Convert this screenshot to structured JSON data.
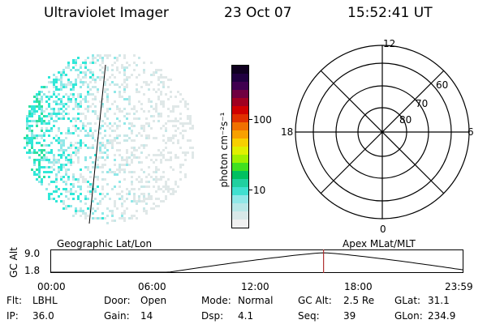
{
  "header": {
    "instrument": "Ultraviolet Imager",
    "date": "23 Oct 07",
    "time": "15:52:41 UT"
  },
  "colorbar": {
    "unit_label": "photon cm⁻²s⁻¹",
    "ticks": [
      "100",
      "10"
    ],
    "colors": [
      "#f0f0f0",
      "#d8e8e8",
      "#b8e8e8",
      "#90e8e8",
      "#40e0d0",
      "#20d0a0",
      "#00c060",
      "#40e020",
      "#a0f000",
      "#e0f000",
      "#f8d000",
      "#f8a000",
      "#f07000",
      "#e03000",
      "#d00000",
      "#a00020",
      "#700040",
      "#400050",
      "#200040",
      "#100020"
    ]
  },
  "polar": {
    "mlt_labels": {
      "top": "12",
      "left": "18",
      "right": "6",
      "bottom": "0"
    },
    "lat_labels": [
      "60",
      "70",
      "80"
    ]
  },
  "timeline": {
    "left_label": "Geographic Lat/Lon",
    "right_label": "Apex MLat/MLT",
    "y_axis_label": "GC Alt",
    "y_ticks": [
      "9.0",
      "1.8"
    ],
    "x_ticks": [
      "00:00",
      "06:00",
      "12:00",
      "18:00",
      "23:59"
    ],
    "current_hour": 15.88
  },
  "info": {
    "row1": [
      {
        "key": "Flt:",
        "value": "LBHL"
      },
      {
        "key": "Door:",
        "value": "Open"
      },
      {
        "key": "Mode:",
        "value": "Normal"
      },
      {
        "key": "GC Alt:",
        "value": "2.5 Re"
      },
      {
        "key": "GLat:",
        "value": "31.1"
      }
    ],
    "row2": [
      {
        "key": "IP:",
        "value": "36.0"
      },
      {
        "key": "Gain:",
        "value": "14"
      },
      {
        "key": "Dsp:",
        "value": "4.1"
      },
      {
        "key": "Seq:",
        "value": "39"
      },
      {
        "key": "GLon:",
        "value": "234.9"
      }
    ]
  }
}
